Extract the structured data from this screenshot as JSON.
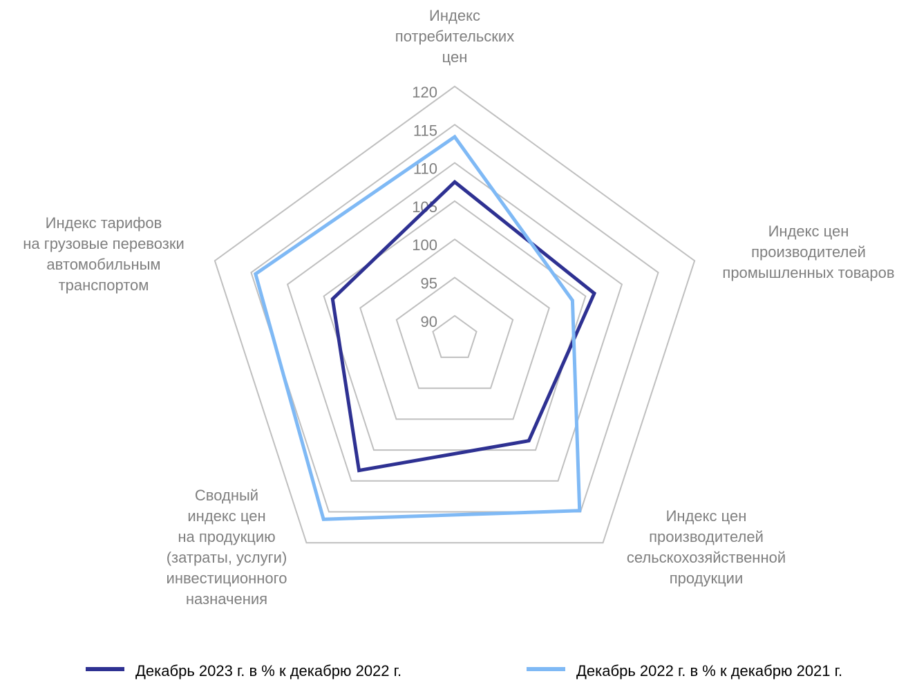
{
  "chart_data": {
    "type": "radar",
    "categories": [
      "Индекс\nпотребительских\nцен",
      "Индекс цен\nпроизводителей\nпромышленных товаров",
      "Индекс цен\nпроизводителей\nсельскохозяйственной\nпродукции",
      "Сводный\nиндекс цен\nна продукцию\n(затраты, услуги)\nинвестиционного\nназначения",
      "Индекс тарифов\nна грузовые перевозки\nавтомобильным\nтранспортом"
    ],
    "series": [
      {
        "name": "Декабрь 2023 г. в %  к декабрю 2022 г.",
        "color": "#2e3192",
        "values": [
          107.5,
          106.2,
          103.5,
          108.3,
          103.8
        ]
      },
      {
        "name": "Декабрь 2022 г. в %  к декабрю 2021 г.",
        "color": "#7fb9f5",
        "values": [
          113.4,
          103.2,
          114.8,
          116.2,
          114.4
        ]
      }
    ],
    "ylim": [
      87,
      120
    ],
    "yticks": [
      90,
      95,
      100,
      105,
      110,
      115,
      120
    ],
    "grid": true,
    "legend": "bottom"
  }
}
